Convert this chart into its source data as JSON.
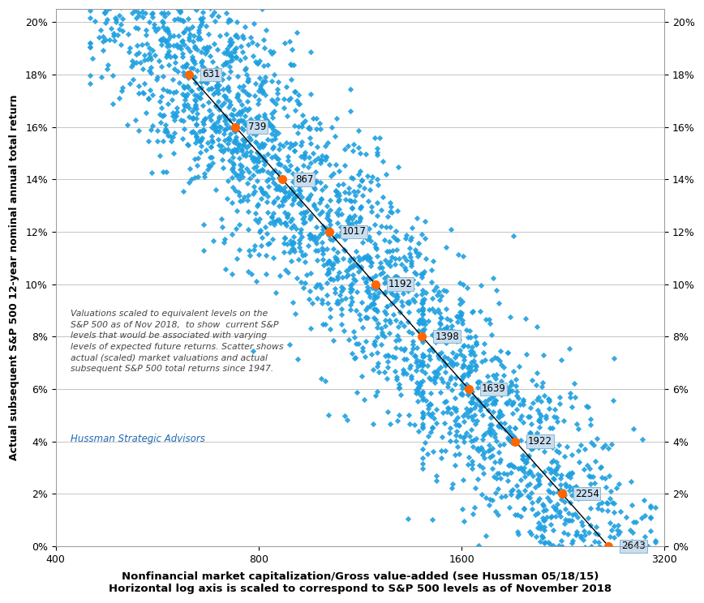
{
  "xlabel_line1": "Nonfinancial market capitalization/Gross value-added (see Hussman 05/18/15)",
  "xlabel_line2": "Horizontal log axis is scaled to correspond to S&P 500 levels as of November 2018",
  "ylabel": "Actual subsequent S&P 500 12-year nominal annual total return",
  "annotation_text": "Valuations scaled to equivalent levels on the\nS&P 500 as of Nov 2018,  to show  current S&P\nlevels that would be associated with varying\nlevels of expected future returns. Scatter shows\nactual (scaled) market valuations and actual\nsubsequent S&P 500 total returns since 1947.",
  "hussman_text": "Hussman Strategic Advisors",
  "hussman_color": "#1e6bb5",
  "annotation_color": "#444444",
  "scatter_color": "#1fa0e0",
  "orange_color": "#ff6600",
  "line_color": "#000000",
  "background_color": "#ffffff",
  "ylim": [
    0.0,
    0.205
  ],
  "yticks": [
    0.0,
    0.02,
    0.04,
    0.06,
    0.08,
    0.1,
    0.12,
    0.14,
    0.16,
    0.18,
    0.2
  ],
  "key_points": {
    "x": [
      631,
      739,
      867,
      1017,
      1192,
      1398,
      1639,
      1922,
      2254,
      2643
    ],
    "y": [
      0.18,
      0.16,
      0.14,
      0.12,
      0.1,
      0.08,
      0.06,
      0.04,
      0.02,
      0.0
    ]
  },
  "scatter_seed": 12345,
  "n_scatter": 2200,
  "figsize": [
    8.68,
    7.44
  ],
  "dpi": 100
}
